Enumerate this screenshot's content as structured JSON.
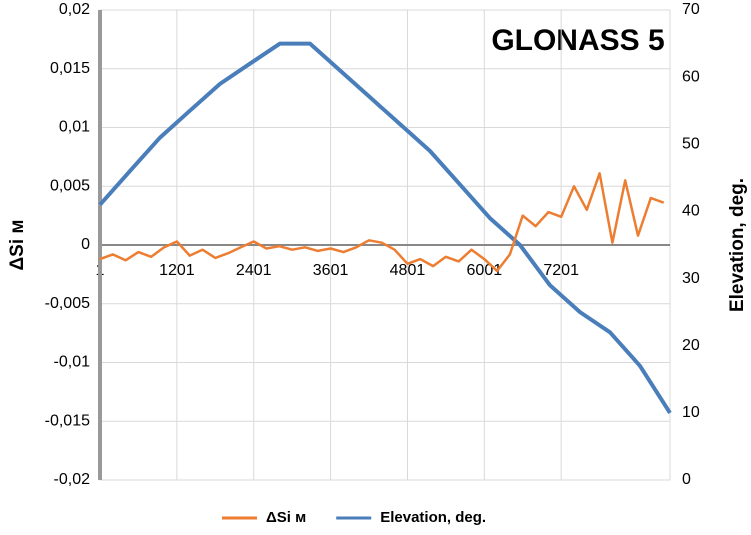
{
  "chart_data": {
    "type": "line",
    "title": "GLONASS 5",
    "ylabel": "ΔSi м",
    "y2label": "Elevation, deg.",
    "xlim": [
      1,
      8900
    ],
    "xticks": [
      1,
      1201,
      2401,
      3601,
      4801,
      6001,
      7201
    ],
    "ylim": [
      -0.02,
      0.02
    ],
    "yticks": [
      {
        "value": -0.02,
        "label": "-0,02"
      },
      {
        "value": -0.015,
        "label": "-0,015"
      },
      {
        "value": -0.01,
        "label": "-0,01"
      },
      {
        "value": -0.005,
        "label": "-0,005"
      },
      0,
      {
        "value": 0.005,
        "label": "0,005"
      },
      {
        "value": 0.01,
        "label": "0,01"
      },
      {
        "value": 0.015,
        "label": "0,015"
      },
      {
        "value": 0.02,
        "label": "0,02"
      }
    ],
    "y2lim": [
      0,
      70
    ],
    "y2ticks": [
      0,
      10,
      20,
      30,
      40,
      50,
      60,
      70
    ],
    "grid": true,
    "series": [
      {
        "name": "ΔSi м",
        "color": "#ed7d31",
        "x": [
          1,
          201,
          401,
          601,
          801,
          1001,
          1201,
          1401,
          1601,
          1801,
          2001,
          2201,
          2401,
          2601,
          2801,
          3001,
          3201,
          3401,
          3601,
          3801,
          4001,
          4201,
          4401,
          4601,
          4801,
          5001,
          5201,
          5401,
          5601,
          5801,
          6001,
          6201,
          6401,
          6601,
          6801,
          7001,
          7201,
          7401,
          7601,
          7801,
          8001,
          8201,
          8401,
          8601,
          8801
        ],
        "values": [
          -0.0012,
          -0.0008,
          -0.0013,
          -0.0006,
          -0.001,
          -0.0002,
          0.0003,
          -0.0009,
          -0.0004,
          -0.0011,
          -0.0007,
          -0.0002,
          0.0003,
          -0.0003,
          -0.0001,
          -0.0004,
          -0.0002,
          -0.0005,
          -0.0003,
          -0.0006,
          -0.0002,
          0.0004,
          0.0002,
          -0.0004,
          -0.0016,
          -0.0012,
          -0.0018,
          -0.001,
          -0.0014,
          -0.0004,
          -0.0012,
          -0.0022,
          -0.0008,
          0.0025,
          0.0016,
          0.0028,
          0.0024,
          0.005,
          0.003,
          0.0061,
          0.0002,
          0.0055,
          0.0008,
          0.004,
          0.0036
        ]
      },
      {
        "name": "Elevation, deg.",
        "color": "#4a7ebb",
        "axis": "y2",
        "x": [
          1,
          468,
          937,
          1405,
          1874,
          2342,
          2811,
          3279,
          3747,
          4216,
          4684,
          5153,
          5621,
          6089,
          6558,
          7026,
          7495,
          7963,
          8432,
          8900
        ],
        "values": [
          41,
          46,
          51,
          55,
          59,
          62,
          65,
          65,
          61,
          57,
          53,
          49,
          44,
          39,
          35,
          29,
          25,
          22,
          17,
          10
        ]
      }
    ]
  }
}
